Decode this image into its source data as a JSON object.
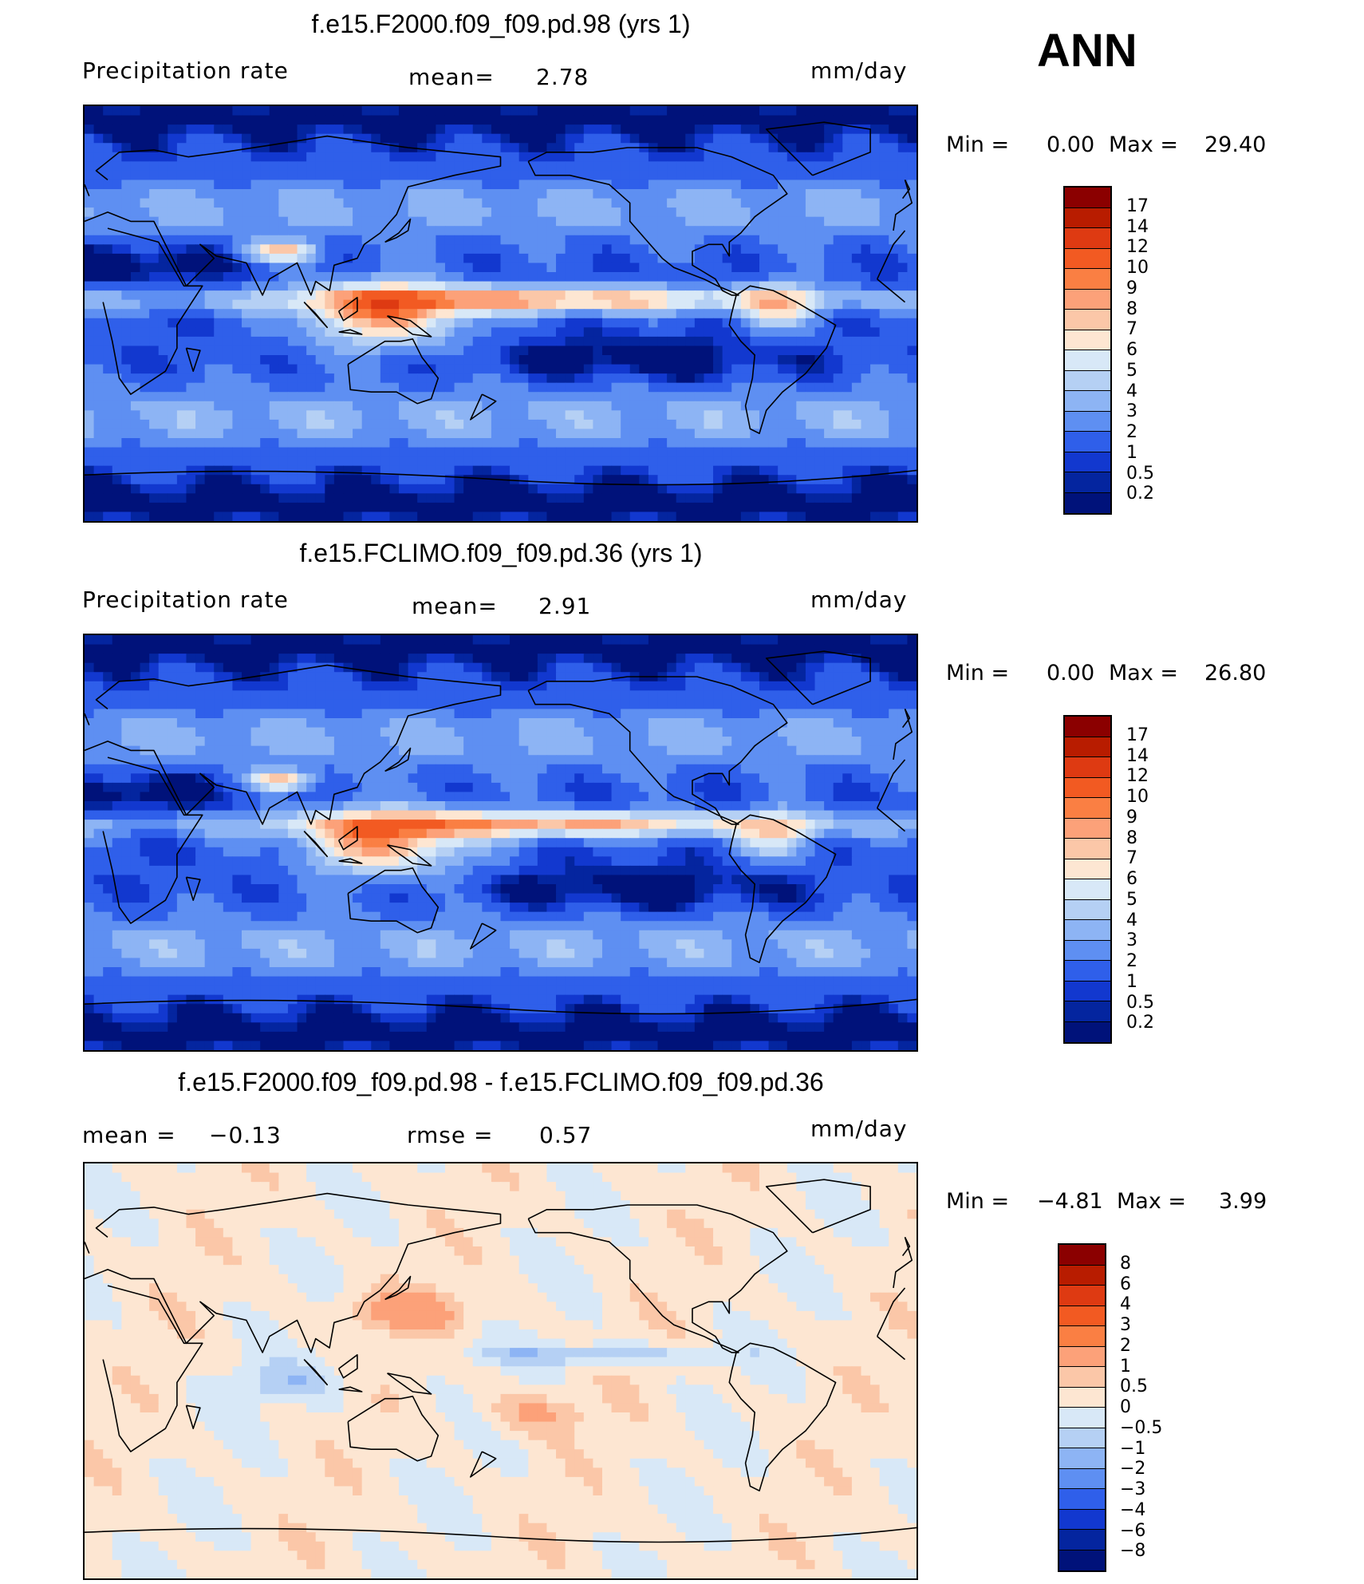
{
  "season": "ANN",
  "panels": [
    {
      "title": "f.e15.F2000.f09_f09.pd.98 (yrs 1)",
      "left_label": "Precipitation rate",
      "mean_label": "mean=",
      "mean_value": "2.78",
      "units": "mm/day",
      "min_label": "Min =",
      "min_value": "0.00",
      "max_label": "Max =",
      "max_value": "29.40",
      "palette": "precip"
    },
    {
      "title": "f.e15.FCLIMO.f09_f09.pd.36 (yrs 1)",
      "left_label": "Precipitation rate",
      "mean_label": "mean=",
      "mean_value": "2.91",
      "units": "mm/day",
      "min_label": "Min =",
      "min_value": "0.00",
      "max_label": "Max =",
      "max_value": "26.80",
      "palette": "precip"
    },
    {
      "title": "f.e15.F2000.f09_f09.pd.98 - f.e15.FCLIMO.f09_f09.pd.36",
      "mean_label": "mean =",
      "mean_value": "−0.13",
      "rmse_label": "rmse =",
      "rmse_value": "0.57",
      "units": "mm/day",
      "min_label": "Min =",
      "min_value": "−4.81",
      "max_label": "Max =",
      "max_value": "3.99",
      "palette": "diff"
    }
  ],
  "colorbars": {
    "precip": {
      "labels": [
        "17",
        "14",
        "12",
        "10",
        "9",
        "8",
        "7",
        "6",
        "5",
        "4",
        "3",
        "2",
        "1",
        "0.5",
        "0.2"
      ],
      "colors": [
        "#8b0000",
        "#b81c00",
        "#de3a12",
        "#f25a22",
        "#fa7f43",
        "#fca179",
        "#fbc7a8",
        "#fde6d2",
        "#d8e8f7",
        "#b5d0f4",
        "#8db4f4",
        "#5e8ff2",
        "#2f5fea",
        "#1238cf",
        "#04259f",
        "#00127a"
      ]
    },
    "diff": {
      "labels": [
        "8",
        "6",
        "4",
        "3",
        "2",
        "1",
        "0.5",
        "0",
        "−0.5",
        "−1",
        "−2",
        "−3",
        "−4",
        "−6",
        "−8"
      ],
      "colors": [
        "#8b0000",
        "#b81c00",
        "#de3a12",
        "#f25a22",
        "#fa7f43",
        "#fca179",
        "#fbc7a8",
        "#fde6d2",
        "#d8e8f7",
        "#b5d0f4",
        "#8db4f4",
        "#5e8ff2",
        "#2f5fea",
        "#1238cf",
        "#04259f",
        "#00127a"
      ]
    }
  }
}
